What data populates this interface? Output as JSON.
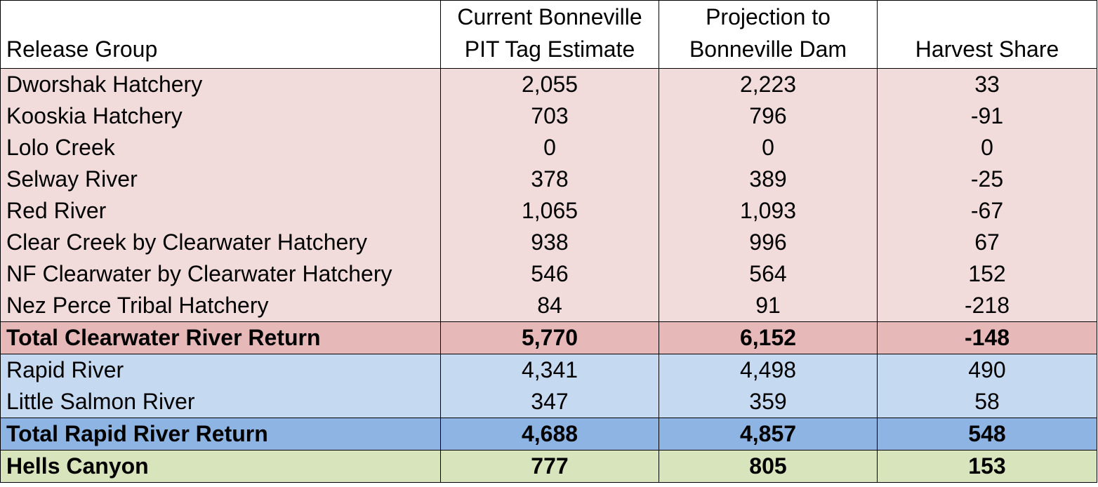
{
  "chart_data": {
    "type": "table",
    "columns": [
      "Release Group",
      "Current Bonneville\nPIT Tag Estimate",
      "Projection to\nBonneville Dam",
      "Harvest Share"
    ],
    "header": {
      "col1": "Release Group",
      "col2_line1": "Current Bonneville",
      "col2_line2": "PIT Tag Estimate",
      "col3_line1": "Projection to",
      "col3_line2": "Bonneville Dam",
      "col4": "Harvest Share"
    },
    "rows": [
      {
        "group": "Dworshak Hatchery",
        "current": "2,055",
        "projection": "2,223",
        "harvest": "33"
      },
      {
        "group": "Kooskia Hatchery",
        "current": "703",
        "projection": "796",
        "harvest": "-91"
      },
      {
        "group": "Lolo Creek",
        "current": "0",
        "projection": "0",
        "harvest": "0"
      },
      {
        "group": "Selway River",
        "current": "378",
        "projection": "389",
        "harvest": "-25"
      },
      {
        "group": "Red River",
        "current": "1,065",
        "projection": "1,093",
        "harvest": "-67"
      },
      {
        "group": "Clear Creek by Clearwater Hatchery",
        "current": "938",
        "projection": "996",
        "harvest": "67"
      },
      {
        "group": "NF Clearwater by Clearwater Hatchery",
        "current": "546",
        "projection": "564",
        "harvest": "152"
      },
      {
        "group": "Nez Perce Tribal Hatchery",
        "current": "84",
        "projection": "91",
        "harvest": "-218"
      },
      {
        "group": "Total Clearwater River Return",
        "current": "5,770",
        "projection": "6,152",
        "harvest": "-148"
      },
      {
        "group": "Rapid River",
        "current": "4,341",
        "projection": "4,498",
        "harvest": "490"
      },
      {
        "group": "Little Salmon River",
        "current": "347",
        "projection": "359",
        "harvest": "58"
      },
      {
        "group": "Total Rapid River Return",
        "current": "4,688",
        "projection": "4,857",
        "harvest": "548"
      },
      {
        "group": "Hells Canyon",
        "current": "777",
        "projection": "805",
        "harvest": "153"
      }
    ],
    "colors": {
      "clearwater_rows": "#f2dcdb",
      "clearwater_total": "#e6b9b8",
      "rapid_rows": "#c5d9f1",
      "rapid_total": "#8db4e2",
      "hells_canyon": "#d8e4bc"
    }
  }
}
